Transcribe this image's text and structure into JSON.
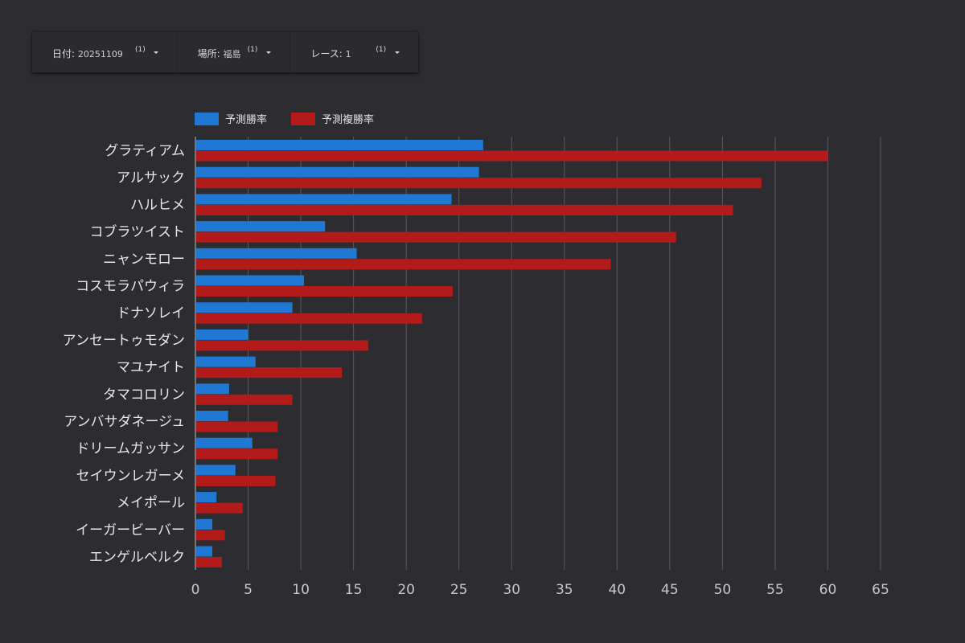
{
  "filters": [
    {
      "label": "日付",
      "value": "20251109",
      "count": "(1)",
      "icon": "chevron-down-icon"
    },
    {
      "label": "場所",
      "value": "福島",
      "count": "(1)",
      "icon": "chevron-down-icon"
    },
    {
      "label": "レース",
      "value": "1",
      "count": "(1)",
      "icon": "chevron-down-icon"
    }
  ],
  "chart_data": {
    "type": "bar",
    "orientation": "horizontal",
    "title": "",
    "xlabel": "",
    "ylabel": "",
    "xlim": [
      0,
      65
    ],
    "x_ticks": [
      0,
      5,
      10,
      15,
      20,
      25,
      30,
      35,
      40,
      45,
      50,
      55,
      60,
      65
    ],
    "grid": true,
    "legend_position": "top-left",
    "categories": [
      "グラティアム",
      "アルサック",
      "ハルヒメ",
      "コブラツイスト",
      "ニャンモロー",
      "コスモラパウィラ",
      "ドナソレイ",
      "アンセートゥモダン",
      "マユナイト",
      "タマコロリン",
      "アンバサダネージュ",
      "ドリームガッサン",
      "セイウンレガーメ",
      "メイポール",
      "イーガービーバー",
      "エンゲルベルク"
    ],
    "series": [
      {
        "name": "予測勝率",
        "color": "#1e78d4",
        "values": [
          27.3,
          26.9,
          24.3,
          12.3,
          15.3,
          10.3,
          9.2,
          5.0,
          5.7,
          3.2,
          3.1,
          5.4,
          3.8,
          2.0,
          1.6,
          1.6
        ]
      },
      {
        "name": "予測複勝率",
        "color": "#b31b1b",
        "values": [
          60.0,
          53.7,
          51.0,
          45.6,
          39.4,
          24.4,
          21.5,
          16.4,
          13.9,
          9.2,
          7.8,
          7.8,
          7.6,
          4.5,
          2.8,
          2.5
        ]
      }
    ]
  }
}
